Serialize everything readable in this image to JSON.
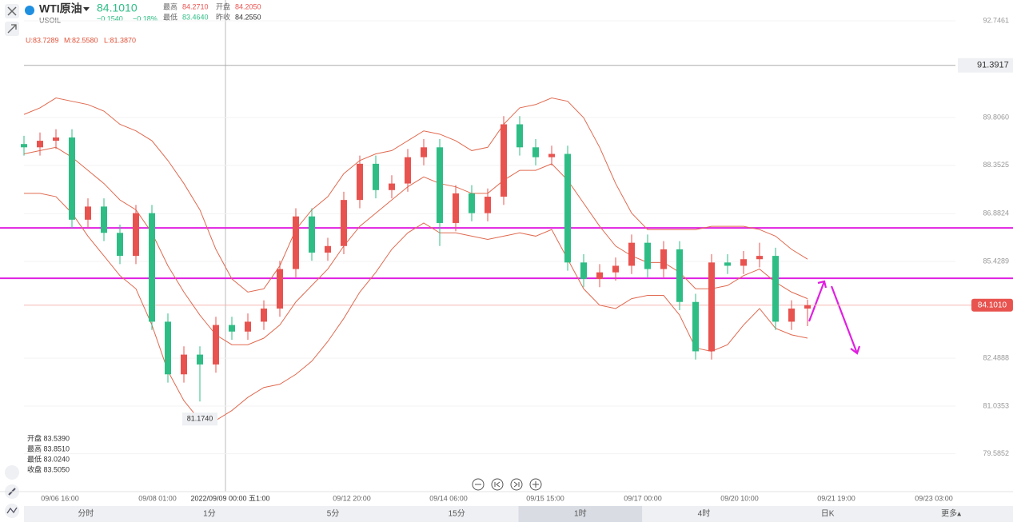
{
  "header": {
    "symbol": "WTI原油",
    "code": "USOIL",
    "price": "84.1010",
    "change": "−0.1540",
    "change_pct": "−0.18%",
    "high_label": "最高",
    "high": "84.2710",
    "open_label": "开盘",
    "open": "84.2050",
    "low_label": "最低",
    "low": "83.4640",
    "prev_label": "昨收",
    "prev": "84.2550"
  },
  "indicator": {
    "upper": "U:83.7289",
    "middle": "M:82.5580",
    "lower": "L:81.3870"
  },
  "hover_info": [
    "开盘 83.5390",
    "最高 83.8510",
    "最低 83.0240",
    "收盘 83.5050"
  ],
  "tabs": {
    "items": [
      "分时",
      "1分",
      "5分",
      "15分",
      "1时",
      "4时",
      "日K",
      "更多▴"
    ],
    "selected": "1时"
  },
  "chart_data": {
    "type": "candlestick",
    "up_color": "#e8534f",
    "down_color": "#2ebd85",
    "open": [
      89.0,
      88.9,
      89.1,
      89.2,
      86.7,
      87.1,
      86.3,
      85.6,
      86.9,
      83.6,
      82.0,
      82.6,
      82.3,
      83.5,
      83.3,
      83.6,
      84.0,
      85.2,
      86.8,
      85.7,
      85.9,
      87.3,
      88.4,
      87.6,
      87.8,
      88.6,
      88.9,
      86.6,
      87.5,
      86.9,
      87.4,
      89.6,
      88.9,
      88.6,
      88.7,
      85.4,
      84.9,
      85.1,
      85.3,
      86.0,
      85.2,
      85.8,
      84.2,
      82.7,
      85.4,
      85.3,
      85.5,
      85.6,
      83.6,
      84.0
    ],
    "high": [
      89.25,
      89.35,
      89.45,
      89.45,
      87.35,
      87.35,
      86.55,
      87.15,
      87.15,
      83.85,
      82.85,
      82.85,
      83.75,
      83.75,
      83.85,
      84.25,
      85.45,
      87.05,
      87.05,
      86.15,
      87.55,
      88.65,
      88.65,
      88.05,
      88.85,
      89.15,
      89.15,
      87.75,
      87.75,
      87.65,
      89.85,
      89.85,
      89.15,
      88.95,
      88.95,
      85.65,
      85.35,
      85.55,
      86.25,
      86.25,
      86.05,
      86.05,
      84.45,
      85.65,
      85.65,
      85.75,
      86.0,
      85.85,
      84.25,
      84.271
    ],
    "low": [
      88.65,
      88.65,
      88.85,
      86.45,
      86.45,
      86.05,
      85.35,
      85.35,
      83.35,
      81.75,
      81.75,
      81.174,
      82.05,
      83.05,
      83.05,
      83.35,
      83.75,
      84.95,
      85.45,
      85.45,
      85.65,
      87.05,
      87.35,
      87.35,
      87.55,
      88.35,
      85.9,
      86.35,
      86.65,
      86.65,
      87.15,
      88.65,
      88.35,
      88.35,
      85.15,
      84.65,
      84.65,
      84.85,
      85.05,
      84.95,
      84.95,
      83.95,
      82.45,
      82.45,
      85.05,
      85.05,
      85.25,
      83.35,
      83.35,
      83.464
    ],
    "close": [
      88.9,
      89.1,
      89.2,
      86.7,
      87.1,
      86.3,
      85.6,
      86.9,
      83.6,
      82.0,
      82.6,
      82.3,
      83.5,
      83.3,
      83.6,
      84.0,
      85.2,
      86.8,
      85.7,
      85.9,
      87.3,
      88.4,
      87.6,
      87.8,
      88.6,
      88.9,
      86.6,
      87.5,
      86.9,
      87.4,
      89.6,
      88.9,
      88.6,
      88.7,
      85.4,
      84.9,
      85.1,
      85.3,
      86.0,
      85.2,
      85.8,
      84.2,
      82.7,
      85.4,
      85.3,
      85.5,
      85.6,
      83.6,
      84.0,
      84.101
    ],
    "bands": [
      {
        "color": "#e06a50",
        "values": [
          89.9,
          90.1,
          90.4,
          90.3,
          90.2,
          90.0,
          89.6,
          89.4,
          89.1,
          88.5,
          87.8,
          87.0,
          85.8,
          84.9,
          84.5,
          84.6,
          85.3,
          86.4,
          87.0,
          87.4,
          88.1,
          88.5,
          88.7,
          88.8,
          89.1,
          89.4,
          89.3,
          89.1,
          88.8,
          88.9,
          89.6,
          90.1,
          90.2,
          90.4,
          90.3,
          89.8,
          88.9,
          87.8,
          86.9,
          86.4,
          86.4,
          86.4,
          86.4,
          86.5,
          86.5,
          86.5,
          86.4,
          86.2,
          85.8,
          85.5
        ]
      },
      {
        "color": "#e06a50",
        "values": [
          88.7,
          88.8,
          88.9,
          88.6,
          88.2,
          87.8,
          87.3,
          87.0,
          86.3,
          85.3,
          84.5,
          83.8,
          83.2,
          82.9,
          82.9,
          83.1,
          83.5,
          84.2,
          84.7,
          85.2,
          85.9,
          86.5,
          86.9,
          87.3,
          87.7,
          88.0,
          87.8,
          87.7,
          87.5,
          87.5,
          87.9,
          88.2,
          88.2,
          88.4,
          87.9,
          87.2,
          86.5,
          85.9,
          85.6,
          85.4,
          85.4,
          85.1,
          84.6,
          84.6,
          84.7,
          85.0,
          85.2,
          84.8,
          84.5,
          84.3
        ]
      },
      {
        "color": "#e06a50",
        "values": [
          87.5,
          87.5,
          87.4,
          86.9,
          86.2,
          85.6,
          85.0,
          84.6,
          83.5,
          82.1,
          81.2,
          80.6,
          80.6,
          80.9,
          81.3,
          81.6,
          81.7,
          82.0,
          82.4,
          83.0,
          83.7,
          84.5,
          85.1,
          85.8,
          86.3,
          86.6,
          86.3,
          86.3,
          86.2,
          86.1,
          86.2,
          86.3,
          86.2,
          86.4,
          85.5,
          84.6,
          84.1,
          84.0,
          84.3,
          84.4,
          84.4,
          83.8,
          82.8,
          82.7,
          82.9,
          83.5,
          84.0,
          83.4,
          83.2,
          83.1
        ]
      }
    ],
    "levels": {
      "color": "#e020e0",
      "values": [
        86.45,
        84.92
      ]
    },
    "alert": {
      "value": 91.3917,
      "label": "91.3917"
    },
    "last_price": {
      "value": 84.101,
      "label": "84.1010"
    },
    "low_marker": {
      "index": 11,
      "label": "81.1740"
    },
    "ylim": [
      78.435,
      93.378
    ],
    "yticks": [
      92.7461,
      89.806,
      88.3525,
      86.8824,
      85.4289,
      82.4888,
      81.0353,
      79.5852
    ],
    "ytick_labels": [
      "92.7461",
      "89.8060",
      "88.3525",
      "86.8824",
      "85.4289",
      "82.4888",
      "81.0353",
      "79.5852"
    ],
    "x_labels": [
      "09/06 16:00",
      "09/08 01:00",
      "09/12 20:00",
      "09/14 06:00",
      "09/15 15:00",
      "09/17 00:00",
      "09/20 10:00",
      "09/21 19:00",
      "09/23 03:00"
    ],
    "crosshair_label": "2022/09/09 00:00 五1:00"
  }
}
